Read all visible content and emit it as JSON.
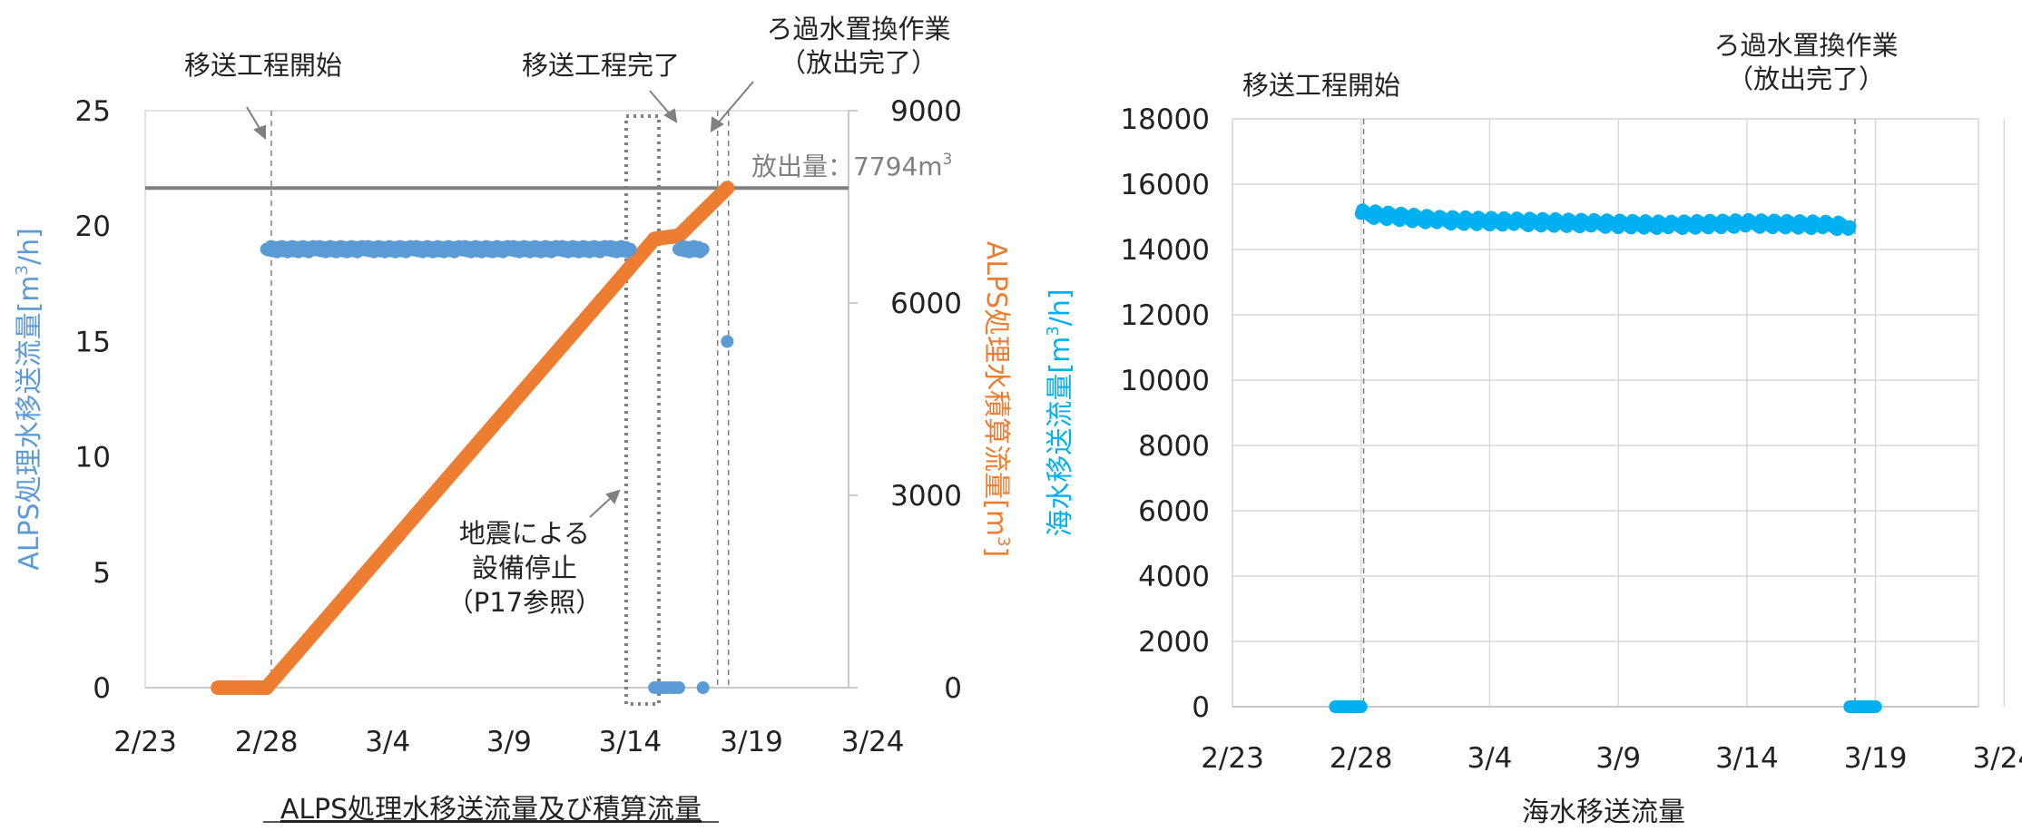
{
  "chart_data": [
    {
      "type": "scatter",
      "title": "ALPS処理水移送流量及び積算流量",
      "ylabel_left": "ALPS処理水移送流量[m3/h]",
      "ylabel_right": "ALPS処理水積算流量[m3]",
      "x_ticks": [
        "2/23",
        "2/28",
        "3/4",
        "3/9",
        "3/14",
        "3/19",
        "3/24"
      ],
      "ylim_left": [
        0,
        25
      ],
      "yticks_left": [
        "0",
        "5",
        "10",
        "15",
        "20",
        "25"
      ],
      "ylim_right": [
        0,
        9000
      ],
      "yticks_right": [
        "0",
        "3000",
        "6000",
        "9000"
      ],
      "grid": false,
      "series": [
        {
          "kind": "flow",
          "color": "#5B9BD5",
          "points": [
            [
              "2/28",
              19.0
            ],
            [
              "3/1",
              19.0
            ],
            [
              "3/3",
              19.0
            ],
            [
              "3/5",
              19.0
            ],
            [
              "3/7",
              19.0
            ],
            [
              "3/9",
              19.0
            ],
            [
              "3/11",
              19.0
            ],
            [
              "3/13",
              19.0
            ],
            [
              "3/14",
              19.0
            ],
            [
              "3/15",
              0
            ],
            [
              "3/16",
              0
            ],
            [
              "3/16",
              19.0
            ],
            [
              "3/17",
              19.0
            ],
            [
              "3/17",
              0
            ],
            [
              "3/18",
              15.0
            ]
          ]
        },
        {
          "kind": "cumulative",
          "color": "#ED7D31",
          "points": [
            [
              "2/26",
              0
            ],
            [
              "2/28",
              0
            ],
            [
              "3/15",
              7000
            ],
            [
              "3/16",
              7050
            ],
            [
              "3/18",
              7794
            ]
          ]
        }
      ],
      "reference_line": {
        "label": "放出量：7794m3",
        "value": 7794
      },
      "annotations": [
        {
          "text": "移送工程開始",
          "date": "2/28"
        },
        {
          "text": "移送工程完了",
          "date": "3/17"
        },
        {
          "text_line1": "ろ過水置換作業",
          "text_line2": "（放出完了）",
          "date": "3/18"
        },
        {
          "text_line1": "地震による",
          "text_line2": "設備停止",
          "text_line3": "（P17参照）"
        }
      ],
      "colors": {
        "flow": "#5B9BD5",
        "cumulative": "#ED7D31",
        "reference": "#808080"
      }
    },
    {
      "type": "scatter",
      "title": "海水移送流量",
      "ylabel": "海水移送流量[m3/h]",
      "x_ticks": [
        "2/23",
        "2/28",
        "3/4",
        "3/9",
        "3/14",
        "3/19",
        "3/24"
      ],
      "ylim": [
        0,
        18000
      ],
      "yticks": [
        "0",
        "2000",
        "4000",
        "6000",
        "8000",
        "10000",
        "12000",
        "14000",
        "16000",
        "18000"
      ],
      "grid": true,
      "series": [
        {
          "kind": "seawater",
          "color": "#00B0F0",
          "points": [
            [
              "2/27",
              0
            ],
            [
              "2/28",
              0
            ],
            [
              "2/28",
              15100
            ],
            [
              "3/2",
              14900
            ],
            [
              "3/5",
              14850
            ],
            [
              "3/8",
              14800
            ],
            [
              "3/11",
              14750
            ],
            [
              "3/14",
              14800
            ],
            [
              "3/17",
              14750
            ],
            [
              "3/18",
              14700
            ],
            [
              "3/18",
              0
            ],
            [
              "3/19",
              0
            ]
          ]
        }
      ],
      "annotations": [
        {
          "text": "移送工程開始",
          "date": "2/28"
        },
        {
          "text_line1": "ろ過水置換作業",
          "text_line2": "（放出完了）",
          "date": "3/18"
        }
      ],
      "colors": {
        "seawater": "#00B0F0"
      }
    }
  ],
  "units": {
    "m3h_prefix": "[m",
    "m3h_sup": "3",
    "m3h_suffix": "/h]",
    "m3_prefix": "[m",
    "m3_suffix": "]"
  },
  "labels": {
    "left_ylabel_main": "ALPS処理水移送流量",
    "right_ylabel_main": "ALPS処理水積算流量",
    "sea_ylabel_main": "海水移送流量",
    "release_label": "放出量：7794m",
    "release_sup": "3"
  }
}
